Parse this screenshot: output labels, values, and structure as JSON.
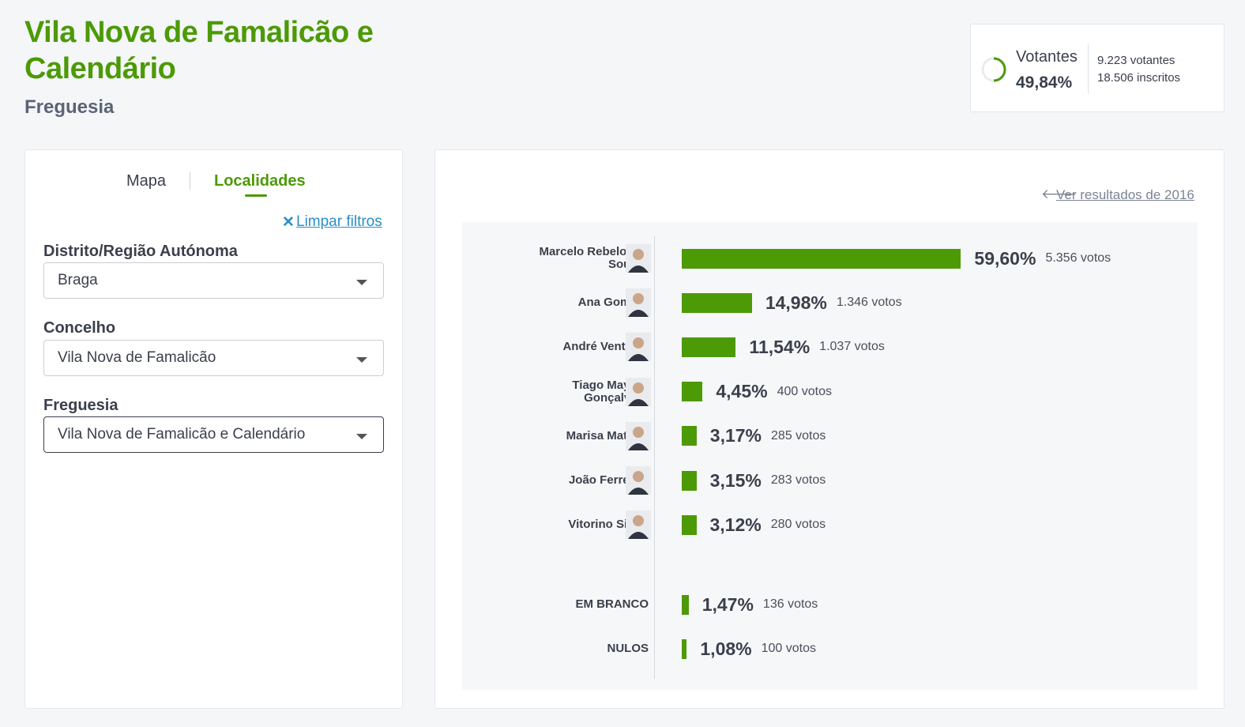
{
  "header": {
    "title": "Vila Nova de Famalicão e Calendário",
    "subtitle": "Freguesia"
  },
  "turnout": {
    "label": "Votantes",
    "percent": "49,84%",
    "voters": "9.223 votantes",
    "registered": "18.506 inscritos"
  },
  "tabs": [
    "Mapa",
    "Localidades"
  ],
  "filters": {
    "clear": "Limpar filtros",
    "fields": [
      {
        "label": "Distrito/Região Autónoma",
        "value": "Braga"
      },
      {
        "label": "Concelho",
        "value": "Vila Nova de Famalicão"
      },
      {
        "label": "Freguesia",
        "value": "Vila Nova de Famalicão e Calendário"
      }
    ]
  },
  "results": {
    "link": "Ver resultados de 2016",
    "color": "#4c9a06",
    "candidates": [
      {
        "name": "Marcelo Rebelo de Sousa",
        "value": 59.6,
        "value_label": "59,60%",
        "votes": "5.356 votos"
      },
      {
        "name": "Ana Gomes",
        "value": 14.98,
        "value_label": "14,98%",
        "votes": "1.346 votos"
      },
      {
        "name": "André Ventura",
        "value": 11.54,
        "value_label": "11,54%",
        "votes": "1.037 votos"
      },
      {
        "name": "Tiago Mayan Gonçalves",
        "value": 4.45,
        "value_label": "4,45%",
        "votes": "400 votos"
      },
      {
        "name": "Marisa Matias",
        "value": 3.17,
        "value_label": "3,17%",
        "votes": "285 votos"
      },
      {
        "name": "João Ferreira",
        "value": 3.15,
        "value_label": "3,15%",
        "votes": "283 votos"
      },
      {
        "name": "Vitorino Silva",
        "value": 3.12,
        "value_label": "3,12%",
        "votes": "280 votos"
      }
    ],
    "other": [
      {
        "name": "EM BRANCO",
        "value": 1.47,
        "value_label": "1,47%",
        "votes": "136 votos"
      },
      {
        "name": "NULOS",
        "value": 1.08,
        "value_label": "1,08%",
        "votes": "100 votos"
      }
    ]
  }
}
